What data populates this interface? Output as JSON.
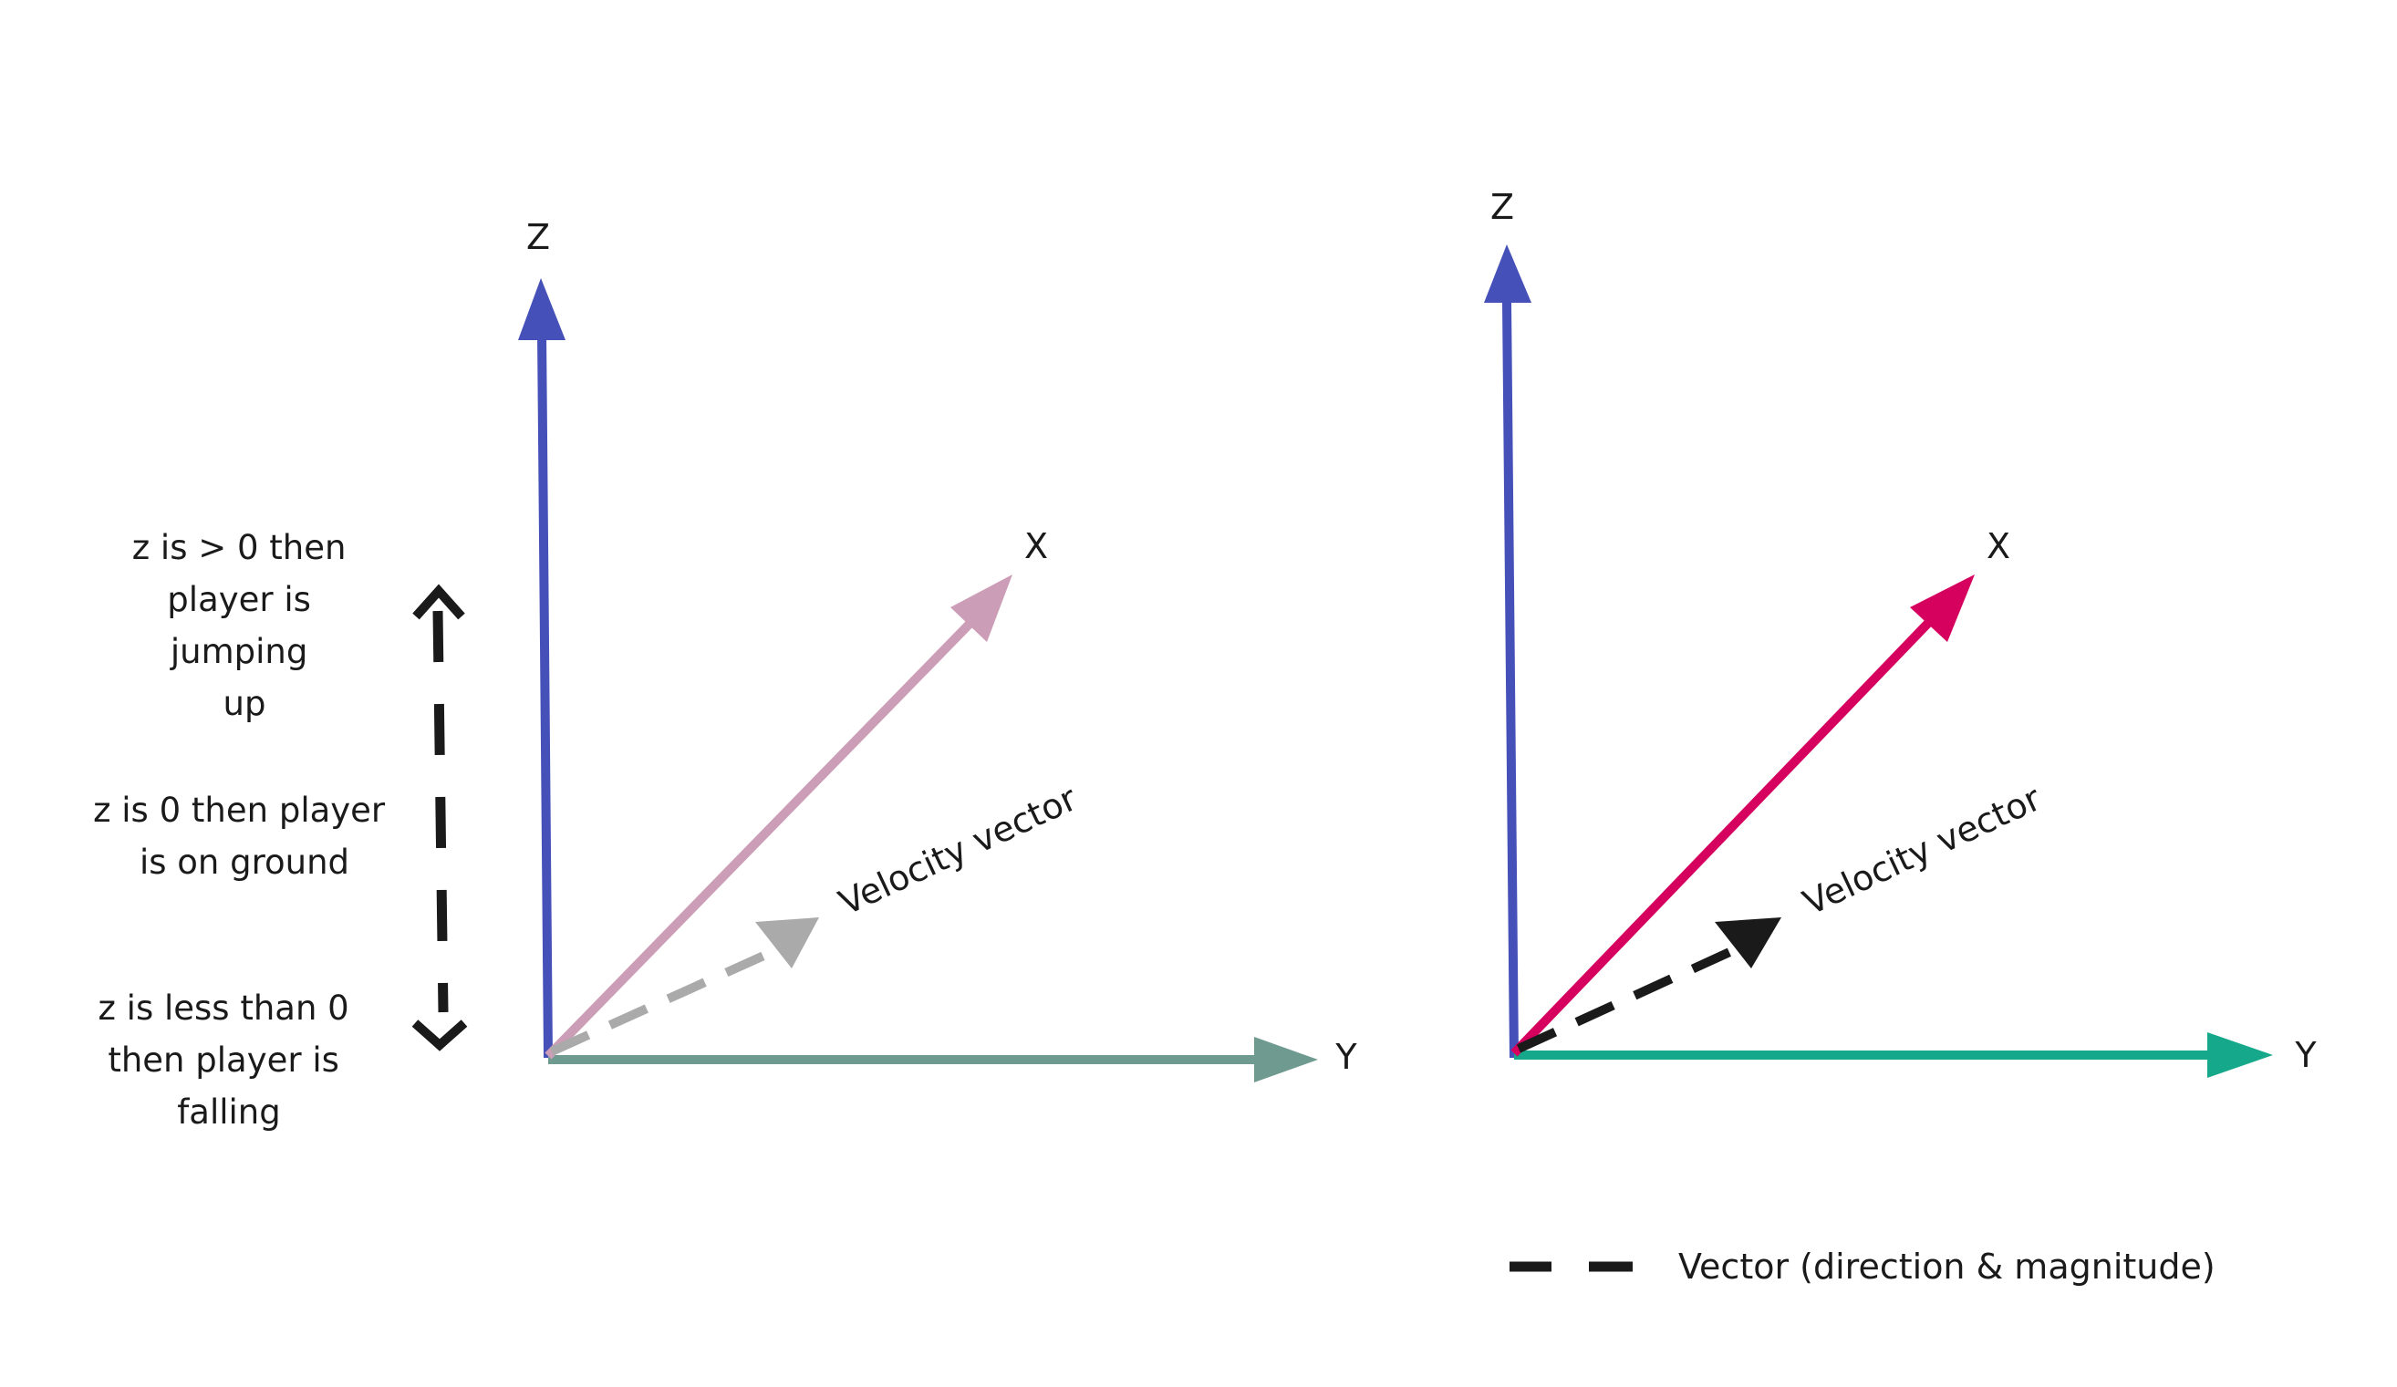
{
  "left_panel": {
    "axes": {
      "z": "Z",
      "x": "X",
      "y": "Y"
    },
    "velocity_label": "Velocity vector",
    "notes": {
      "jumping": [
        "z is > 0 then",
        "player is",
        "jumping",
        "up"
      ],
      "ground": [
        "z is 0 then player",
        "is on ground"
      ],
      "falling": [
        "z is less than 0",
        "then player is",
        "falling"
      ]
    },
    "colors": {
      "z": "#4550b8",
      "x": "#cc9db6",
      "y": "#6e9a90",
      "velocity": "#aaaaaa",
      "z_direction": "#1a1a1a"
    }
  },
  "right_panel": {
    "axes": {
      "z": "Z",
      "x": "X",
      "y": "Y"
    },
    "velocity_label": "Velocity vector",
    "colors": {
      "z": "#4550b8",
      "x": "#d6005f",
      "y": "#15a88a",
      "velocity": "#1a1a1a"
    }
  },
  "legend": {
    "label": "Vector (direction & magnitude)",
    "color": "#1a1a1a"
  }
}
